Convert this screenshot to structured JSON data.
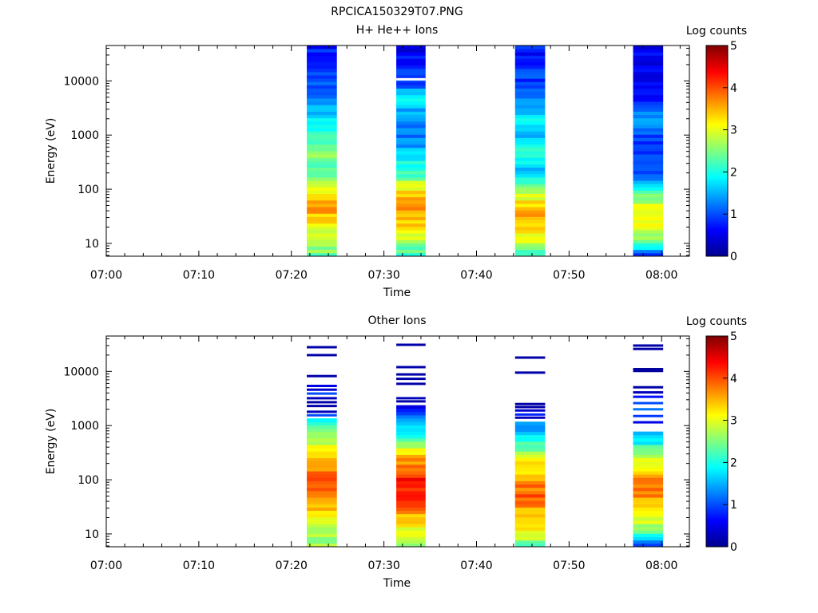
{
  "figure_title": "RPCICA150329T07.PNG",
  "chart_data": [
    {
      "type": "heatmap",
      "title": "H+ He++ Ions",
      "xlabel": "Time",
      "ylabel": "Energy (eV)",
      "x_ticks": [
        "07:00",
        "07:10",
        "07:20",
        "07:30",
        "07:40",
        "07:50",
        "08:00"
      ],
      "xlim_minutes": [
        0,
        63
      ],
      "y_scale": "log",
      "y_ticks": [
        10,
        100,
        1000,
        10000
      ],
      "y_tick_labels": [
        "10",
        "100",
        "1000",
        "10000"
      ],
      "ylim": [
        5.8,
        45000
      ],
      "colorbar": {
        "label": "Log counts",
        "range": [
          0,
          5
        ],
        "ticks": [
          "0",
          "1",
          "2",
          "3",
          "4",
          "5"
        ]
      },
      "grid": false,
      "bursts": [
        {
          "start": "07:21:40",
          "end": "07:24:55",
          "profile": [
            [
              6,
              2.4
            ],
            [
              12,
              2.9
            ],
            [
              20,
              3.0
            ],
            [
              30,
              3.3
            ],
            [
              45,
              3.6
            ],
            [
              70,
              3.3
            ],
            [
              110,
              2.9
            ],
            [
              200,
              2.4
            ],
            [
              600,
              2.5
            ],
            [
              1000,
              2.0
            ],
            [
              2000,
              1.7
            ],
            [
              5000,
              1.3
            ],
            [
              12000,
              0.9
            ],
            [
              45000,
              0.8
            ]
          ],
          "gaps": []
        },
        {
          "start": "07:31:20",
          "end": "07:34:30",
          "profile": [
            [
              6,
              2.1
            ],
            [
              12,
              2.8
            ],
            [
              20,
              3.2
            ],
            [
              30,
              3.5
            ],
            [
              45,
              3.8
            ],
            [
              70,
              3.4
            ],
            [
              110,
              3.0
            ],
            [
              200,
              2.2
            ],
            [
              600,
              1.5
            ],
            [
              1000,
              1.2
            ],
            [
              2000,
              1.3
            ],
            [
              5000,
              1.8
            ],
            [
              10000,
              0.9
            ],
            [
              45000,
              0.5
            ]
          ],
          "gaps": [
            10700
          ]
        },
        {
          "start": "07:44:10",
          "end": "07:47:25",
          "profile": [
            [
              6,
              2.1
            ],
            [
              12,
              3.0
            ],
            [
              20,
              3.2
            ],
            [
              30,
              3.6
            ],
            [
              45,
              3.4
            ],
            [
              70,
              3.0
            ],
            [
              110,
              2.5
            ],
            [
              200,
              1.6
            ],
            [
              600,
              2.1
            ],
            [
              1000,
              1.5
            ],
            [
              2000,
              1.9
            ],
            [
              5000,
              1.1
            ],
            [
              12000,
              0.9
            ],
            [
              45000,
              0.7
            ]
          ],
          "gaps": []
        },
        {
          "start": "07:56:55",
          "end": "08:00:10",
          "profile": [
            [
              6,
              0.9
            ],
            [
              12,
              2.6
            ],
            [
              20,
              2.9
            ],
            [
              30,
              3.1
            ],
            [
              45,
              3.0
            ],
            [
              70,
              2.6
            ],
            [
              110,
              1.6
            ],
            [
              200,
              1.0
            ],
            [
              600,
              0.8
            ],
            [
              1000,
              0.9
            ],
            [
              2000,
              1.4
            ],
            [
              5000,
              0.7
            ],
            [
              12000,
              0.5
            ],
            [
              45000,
              0.6
            ]
          ],
          "gaps": []
        }
      ]
    },
    {
      "type": "heatmap",
      "title": "Other Ions",
      "xlabel": "Time",
      "ylabel": "Energy (eV)",
      "x_ticks": [
        "07:00",
        "07:10",
        "07:20",
        "07:30",
        "07:40",
        "07:50",
        "08:00"
      ],
      "xlim_minutes": [
        0,
        63
      ],
      "y_scale": "log",
      "y_ticks": [
        10,
        100,
        1000,
        10000
      ],
      "y_tick_labels": [
        "10",
        "100",
        "1000",
        "10000"
      ],
      "ylim": [
        5.8,
        45000
      ],
      "colorbar": {
        "label": "Log counts",
        "range": [
          0,
          5
        ],
        "ticks": [
          "0",
          "1",
          "2",
          "3",
          "4",
          "5"
        ]
      },
      "grid": false,
      "bursts": [
        {
          "start": "07:21:40",
          "end": "07:24:55",
          "profile": [
            [
              6,
              2.6
            ],
            [
              12,
              2.8
            ],
            [
              25,
              3.3
            ],
            [
              50,
              3.8
            ],
            [
              90,
              4.0
            ],
            [
              180,
              3.7
            ],
            [
              300,
              3.3
            ],
            [
              600,
              2.6
            ],
            [
              1000,
              2.3
            ],
            [
              1300,
              1.6
            ]
          ],
          "cutoff": 1400,
          "lines": [
            {
              "energy": 1550,
              "level": 1.0
            },
            {
              "energy": 1800,
              "level": 0.3
            },
            {
              "energy": 2300,
              "level": 0.2
            },
            {
              "energy": 2700,
              "level": 0.2
            },
            {
              "energy": 3200,
              "level": 0.3
            },
            {
              "energy": 3900,
              "level": 1.0
            },
            {
              "energy": 4600,
              "level": 0.4
            },
            {
              "energy": 5400,
              "level": 0.5
            },
            {
              "energy": 8200,
              "level": 0.2
            },
            {
              "energy": 20000,
              "level": 0.2
            },
            {
              "energy": 28000,
              "level": 0.2
            }
          ]
        },
        {
          "start": "07:31:20",
          "end": "07:34:30",
          "profile": [
            [
              6,
              2.5
            ],
            [
              12,
              3.0
            ],
            [
              25,
              3.6
            ],
            [
              50,
              4.2
            ],
            [
              90,
              4.3
            ],
            [
              180,
              3.9
            ],
            [
              300,
              3.3
            ],
            [
              600,
              2.2
            ],
            [
              1000,
              1.6
            ],
            [
              2300,
              0.6
            ]
          ],
          "cutoff": 2400,
          "lines": [
            {
              "energy": 2800,
              "level": 0.2
            },
            {
              "energy": 3200,
              "level": 0.3
            },
            {
              "energy": 5900,
              "level": 0.2
            },
            {
              "energy": 7300,
              "level": 0.2
            },
            {
              "energy": 8800,
              "level": 0.2
            },
            {
              "energy": 12000,
              "level": 0.2
            },
            {
              "energy": 31000,
              "level": 0.2
            }
          ]
        },
        {
          "start": "07:44:10",
          "end": "07:47:25",
          "profile": [
            [
              6,
              2.3
            ],
            [
              12,
              3.2
            ],
            [
              25,
              3.5
            ],
            [
              50,
              3.9
            ],
            [
              90,
              3.7
            ],
            [
              180,
              3.2
            ],
            [
              300,
              2.8
            ],
            [
              600,
              1.8
            ],
            [
              1000,
              1.4
            ],
            [
              1200,
              1.0
            ]
          ],
          "cutoff": 1250,
          "lines": [
            {
              "energy": 1400,
              "level": 0.3
            },
            {
              "energy": 1600,
              "level": 0.8
            },
            {
              "energy": 1900,
              "level": 0.4
            },
            {
              "energy": 2200,
              "level": 0.2
            },
            {
              "energy": 2500,
              "level": 0.2
            },
            {
              "energy": 9500,
              "level": 0.2
            },
            {
              "energy": 18000,
              "level": 0.2
            }
          ]
        },
        {
          "start": "07:56:55",
          "end": "08:00:10",
          "profile": [
            [
              6,
              0.9
            ],
            [
              12,
              2.5
            ],
            [
              25,
              3.3
            ],
            [
              50,
              3.7
            ],
            [
              90,
              3.8
            ],
            [
              180,
              3.2
            ],
            [
              300,
              2.7
            ],
            [
              600,
              1.6
            ],
            [
              800,
              1.4
            ]
          ],
          "cutoff": 820,
          "lines": [
            {
              "energy": 1150,
              "level": 0.5
            },
            {
              "energy": 1500,
              "level": 0.9
            },
            {
              "energy": 2000,
              "level": 1.2
            },
            {
              "energy": 2600,
              "level": 1.0
            },
            {
              "energy": 3400,
              "level": 0.7
            },
            {
              "energy": 4100,
              "level": 0.3
            },
            {
              "energy": 5100,
              "level": 0.2
            },
            {
              "energy": 10200,
              "level": 0.15
            },
            {
              "energy": 11000,
              "level": 0.15
            },
            {
              "energy": 26000,
              "level": 0.2
            },
            {
              "energy": 30000,
              "level": 0.2
            }
          ]
        }
      ]
    }
  ]
}
